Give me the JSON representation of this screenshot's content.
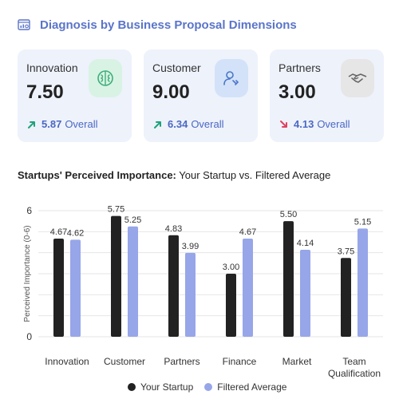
{
  "header": {
    "title": "Diagnosis by Business Proposal Dimensions",
    "icon": "chart-window-icon"
  },
  "cards": [
    {
      "label": "Innovation",
      "value": "7.50",
      "overall_value": "5.87",
      "overall_label": "Overall",
      "trend": "up",
      "icon": "brain-icon",
      "badge_color": "#d8f3e4",
      "icon_color": "#3fae7a"
    },
    {
      "label": "Customer",
      "value": "9.00",
      "overall_value": "6.34",
      "overall_label": "Overall",
      "trend": "up",
      "icon": "user-tag-icon",
      "badge_color": "#d3e2f8",
      "icon_color": "#4a76c9"
    },
    {
      "label": "Partners",
      "value": "3.00",
      "overall_value": "4.13",
      "overall_label": "Overall",
      "trend": "down",
      "icon": "handshake-icon",
      "badge_color": "#e6e6e6",
      "icon_color": "#666666"
    }
  ],
  "colors": {
    "accent": "#5a74c9",
    "trend_up": "#1fa27a",
    "trend_down": "#e04060",
    "series_startup": "#222222",
    "series_filtered": "#97a6e8"
  },
  "chart_title": {
    "bold": "Startups' Perceived Importance:",
    "rest": " Your Startup vs. Filtered Average"
  },
  "chart_data": {
    "type": "bar",
    "categories": [
      "Innovation",
      "Customer",
      "Partners",
      "Finance",
      "Market",
      "Team Qualification"
    ],
    "series": [
      {
        "name": "Your Startup",
        "values": [
          4.67,
          5.75,
          4.83,
          3.0,
          5.5,
          3.75
        ],
        "labels": [
          "4.67",
          "5.75",
          "4.83",
          "3.00",
          "5.50",
          "3.75"
        ]
      },
      {
        "name": "Filtered Average",
        "values": [
          4.62,
          5.25,
          3.99,
          4.67,
          4.14,
          5.15
        ],
        "labels": [
          "4.62",
          "5.25",
          "3.99",
          "4.67",
          "4.14",
          "5.15"
        ]
      }
    ],
    "ylabel": "Perceived Importance (0-6)",
    "ylim": [
      0,
      6
    ],
    "yticks": [
      "6",
      "0"
    ],
    "grid": true,
    "legend": "bottom"
  }
}
